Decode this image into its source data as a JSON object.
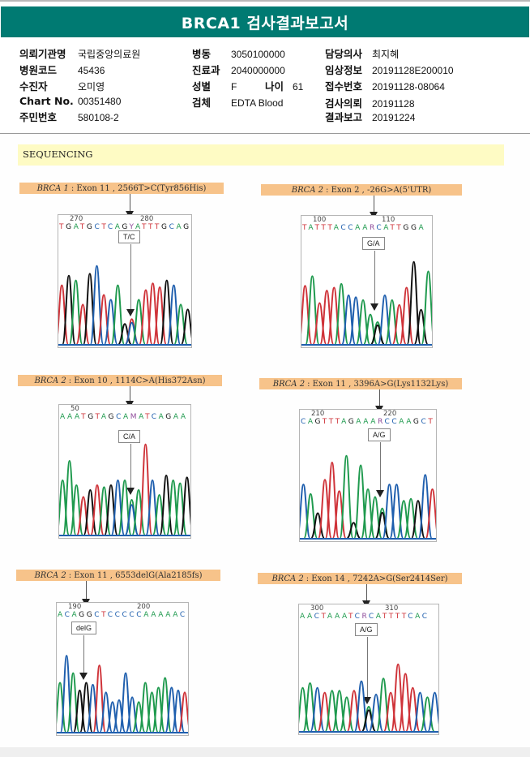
{
  "report": {
    "title": "BRCA1 검사결과보고서",
    "fields_left": [
      {
        "label": "의뢰기관명",
        "value": "국립중앙의료원"
      },
      {
        "label": "병원코드",
        "value": "45436"
      },
      {
        "label": "수진자",
        "value": "오미영"
      },
      {
        "label": "Chart No.",
        "value": "00351480"
      },
      {
        "label": "주민번호",
        "value": "580108-2"
      }
    ],
    "fields_mid": [
      {
        "label": "병동",
        "value": "3050100000"
      },
      {
        "label": "진료과",
        "value": "2040000000"
      },
      {
        "label": "성별",
        "value": "F"
      },
      {
        "label": "검체",
        "value": "EDTA Blood"
      }
    ],
    "age": {
      "label": "나이",
      "value": "61"
    },
    "fields_right": [
      {
        "label": "담당의사",
        "value": "최지혜"
      },
      {
        "label": "임상정보",
        "value": "20191128E200010"
      },
      {
        "label": "접수번호",
        "value": "20191128-08064"
      },
      {
        "label": "검사의뢰",
        "value": "20191128"
      },
      {
        "label": "결과보고",
        "value": "20191224"
      }
    ]
  },
  "section": {
    "title": "SEQUENCING"
  },
  "colors": {
    "header": "#007a72",
    "banner": "#fefbc4",
    "panel_title": "#f7c38a",
    "A": "#1f9a4e",
    "C": "#1f5fae",
    "G": "#111111",
    "T": "#cf3339"
  },
  "panels": [
    {
      "gene": "BRCA 1",
      "desc": ": Exon 11 , 2566T>C(Tyr856His)",
      "pos1": "270",
      "pos2": "280",
      "sequence": "TGATGCTCAGYATTTGCAG",
      "call": "T/C",
      "peaks": "TGATGCTCAGYATTTGCAG",
      "heights": [
        0.6,
        0.7,
        0.65,
        0.4,
        0.72,
        0.8,
        0.5,
        0.45,
        0.6,
        0.2,
        0.25,
        0.45,
        0.55,
        0.62,
        0.58,
        0.65,
        0.6,
        0.4,
        0.35
      ]
    },
    {
      "gene": "BRCA 2",
      "desc": ": Exon 2 , -26G>A(5'UTR)",
      "pos1": "100",
      "pos2": "110",
      "sequence": "TATTTACCAARCATTGGA",
      "call": "G/A",
      "peaks": "TATTTACCAARCATTGGA",
      "heights": [
        0.6,
        0.7,
        0.42,
        0.55,
        0.58,
        0.62,
        0.5,
        0.48,
        0.45,
        0.3,
        0.22,
        0.5,
        0.45,
        0.4,
        0.58,
        0.85,
        0.35,
        0.75
      ]
    },
    {
      "gene": "BRCA 2",
      "desc": ": Exon 10 , 1114C>A(His372Asn)",
      "pos1": "50",
      "pos2": "",
      "sequence": "AAATGTAGCAMATCAGAAG",
      "call": "C/A",
      "peaks": "AAATGTAGCAMATCAGAAG",
      "heights": [
        0.55,
        0.75,
        0.5,
        0.38,
        0.45,
        0.5,
        0.48,
        0.5,
        0.55,
        0.55,
        0.35,
        0.45,
        0.92,
        0.55,
        0.4,
        0.6,
        0.55,
        0.52,
        0.58
      ]
    },
    {
      "gene": "BRCA 2",
      "desc": ": Exon 11 , 3396A>G(Lys1132Lys)",
      "pos1": "210",
      "pos2": "220",
      "sequence": "CAGTTTAGAAARCCAAGCT",
      "call": "A/G",
      "peaks": "CAGTTTAGAAARCCAAGCT",
      "heights": [
        0.55,
        0.45,
        0.25,
        0.6,
        0.78,
        0.48,
        0.85,
        0.15,
        0.75,
        0.5,
        0.42,
        0.3,
        0.55,
        0.55,
        0.38,
        0.4,
        0.38,
        0.65,
        0.5
      ]
    },
    {
      "gene": "BRCA 2",
      "desc": ": Exon 11 , 6553delG(Ala2185fs)",
      "pos1": "190",
      "pos2": "200",
      "sequence": "ACAGGCTCCCCCAAAAACCT",
      "call": "delG",
      "peaks": "ACAGGCTCCCCCAAAAACCT",
      "heights": [
        0.5,
        0.78,
        0.6,
        0.42,
        0.5,
        0.48,
        0.68,
        0.4,
        0.3,
        0.32,
        0.6,
        0.35,
        0.3,
        0.5,
        0.4,
        0.45,
        0.55,
        0.45,
        0.42,
        0.4
      ]
    },
    {
      "gene": "BRCA 2",
      "desc": ": Exon 14 , 7242A>G(Ser2414Ser)",
      "pos1": "300",
      "pos2": "310",
      "sequence": "AACTAAATCRCATTTTCAC",
      "call": "A/G",
      "peaks": "AACTAAATCRCATTTTCAC",
      "heights": [
        0.45,
        0.5,
        0.45,
        0.4,
        0.42,
        0.42,
        0.35,
        0.42,
        0.52,
        0.25,
        0.38,
        0.55,
        0.4,
        0.7,
        0.6,
        0.45,
        0.4,
        0.35,
        0.4
      ]
    }
  ]
}
